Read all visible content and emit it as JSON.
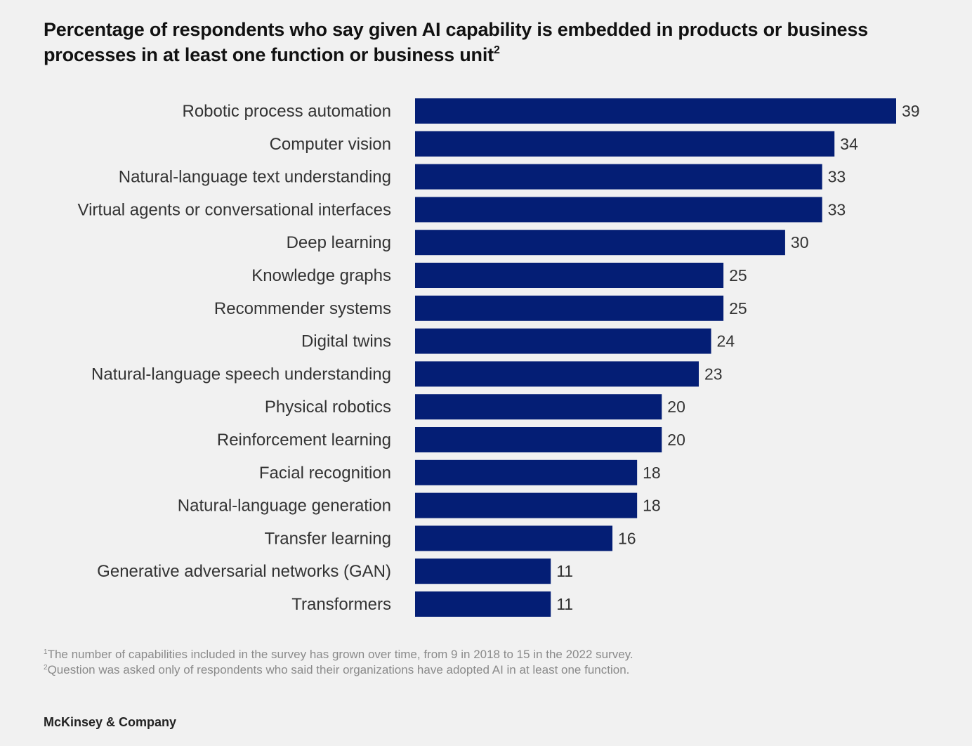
{
  "chart_data": {
    "type": "bar",
    "orientation": "horizontal",
    "title": "Percentage of respondents who say given AI capability is embedded in products or business processes in at least one function or business unit",
    "title_superscript": "2",
    "xlabel": "",
    "ylabel": "",
    "xlim": [
      0,
      39
    ],
    "grid": false,
    "legend": "none",
    "bar_color": "#041e75",
    "categories": [
      "Robotic process automation",
      "Computer vision",
      "Natural-language text understanding",
      "Virtual agents or conversational interfaces",
      "Deep learning",
      "Knowledge graphs",
      "Recommender systems",
      "Digital twins",
      "Natural-language speech understanding",
      "Physical robotics",
      "Reinforcement learning",
      "Facial recognition",
      "Natural-language generation",
      "Transfer learning",
      "Generative adversarial networks (GAN)",
      "Transformers"
    ],
    "values": [
      39,
      34,
      33,
      33,
      30,
      25,
      25,
      24,
      23,
      20,
      20,
      18,
      18,
      16,
      11,
      11
    ]
  },
  "footnotes": [
    {
      "marker": "1",
      "text": "The number of capabilities included in the survey has grown over time, from 9 in 2018 to 15 in the 2022 survey."
    },
    {
      "marker": "2",
      "text": "Question was asked only of respondents who said their organizations have adopted AI in at least one function."
    }
  ],
  "brand": "McKinsey & Company"
}
